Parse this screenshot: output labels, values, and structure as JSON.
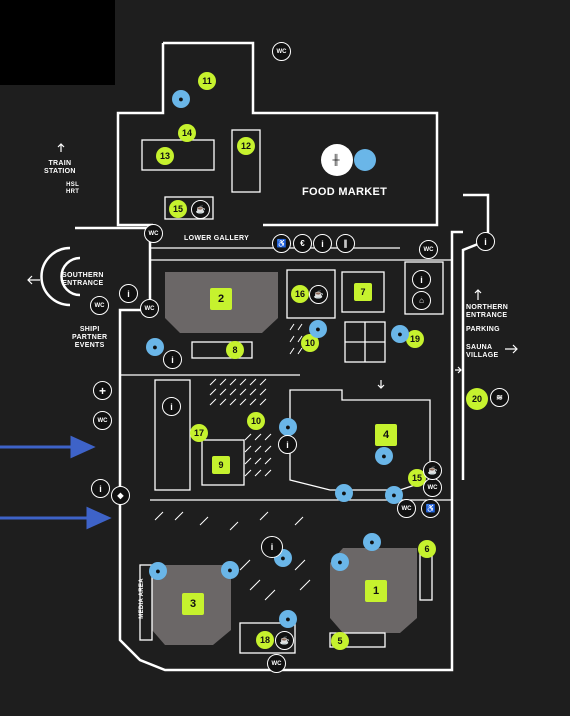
{
  "colors": {
    "background": "#1e1e1e",
    "walls": "#ffffff",
    "zone": "#6b6767",
    "accent": "#c6f22e",
    "water": "#6ab6e8",
    "arrow": "#3e63c8"
  },
  "labels": {
    "food_market": "FOOD MARKET",
    "lower_gallery": "LOWER GALLERY",
    "train_station": "TRAIN\nSTATION",
    "hsl": "HSL\nHRT",
    "southern_entrance": "SOUTHERN\nENTRANCE",
    "shipi": "SHIPI\nPARTNER\nEVENTS",
    "northern_entrance": "NORTHERN\nENTRANCE",
    "parking": "PARKING",
    "sauna_village": "SAUNA\nVILLAGE",
    "media_area": "MEDIA AREA"
  },
  "spots": {
    "s1": "1",
    "s2": "2",
    "s3": "3",
    "s4": "4",
    "s5": "5",
    "s6": "6",
    "s7": "7",
    "s8": "8",
    "s9": "9",
    "s10a": "10",
    "s10b": "10",
    "s10c": "10",
    "s11": "11",
    "s12": "12",
    "s13": "13",
    "s14": "14",
    "s15a": "15",
    "s15b": "15",
    "s16": "16",
    "s17": "17",
    "s18": "18",
    "s19": "19",
    "s20": "20"
  },
  "facilities": {
    "wc_label": "WC",
    "info_symbol": "i",
    "euro_symbol": "€",
    "first_aid_symbol": "+",
    "water_symbol": "●",
    "cafe_symbol": "☕",
    "restroom_icon": "wc-icon",
    "info_icon": "info-icon",
    "water_icon": "water-drop-icon"
  }
}
